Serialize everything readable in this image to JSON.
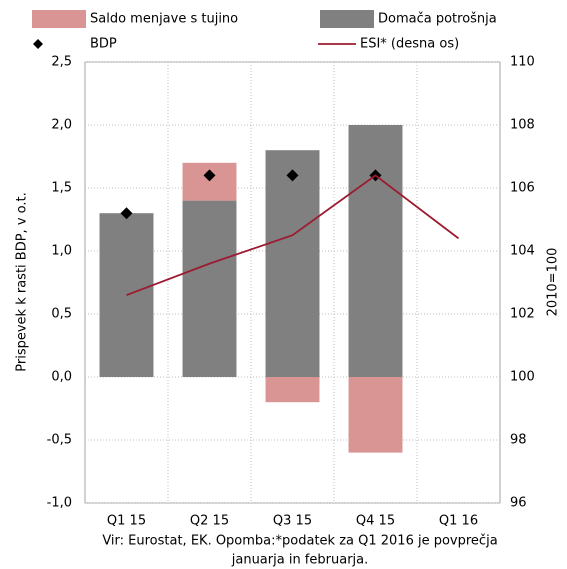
{
  "chart_data": {
    "type": "bar",
    "categories": [
      "Q1 15",
      "Q2 15",
      "Q3 15",
      "Q4 15",
      "Q1 16"
    ],
    "series": [
      {
        "name": "Domača potrošnja",
        "type": "bar",
        "color": "#808080",
        "values": [
          1.3,
          1.4,
          1.8,
          2.0,
          null
        ]
      },
      {
        "name": "Saldo menjave s tujino",
        "type": "bar",
        "color": "#d99594",
        "values": [
          0,
          0.3,
          -0.2,
          -0.6,
          null
        ]
      },
      {
        "name": "BDP",
        "type": "scatter",
        "color": "#000000",
        "values": [
          1.3,
          1.6,
          1.6,
          1.6,
          null
        ]
      },
      {
        "name": "ESI* (desna os)",
        "type": "line",
        "axis": "y2",
        "color": "#9b1b30",
        "values": [
          102.6,
          103.6,
          104.5,
          106.4,
          104.4
        ]
      }
    ],
    "ylabel": "Prispevek k rasti BDP, v o.t.",
    "y2label": "2010=100",
    "ylim": [
      -1.0,
      2.5
    ],
    "yticks": [
      {
        "value": -1.0,
        "label": "-1,0"
      },
      {
        "value": -0.5,
        "label": "-0,5"
      },
      {
        "value": 0,
        "label": "0,0"
      },
      {
        "value": 0.5,
        "label": "0,5"
      },
      {
        "value": 1.0,
        "label": "1,0"
      },
      {
        "value": 1.5,
        "label": "1,5"
      },
      {
        "value": 2.0,
        "label": "2,0"
      },
      {
        "value": 2.5,
        "label": "2,5"
      }
    ],
    "y2lim": [
      96,
      110
    ],
    "y2ticks": [
      96,
      98,
      100,
      102,
      104,
      106,
      108,
      110
    ],
    "grid": true,
    "note": [
      "Vir: Eurostat, EK. Opomba:*podatek za Q1 2016 je povprečja",
      "januarja in februarja."
    ]
  }
}
